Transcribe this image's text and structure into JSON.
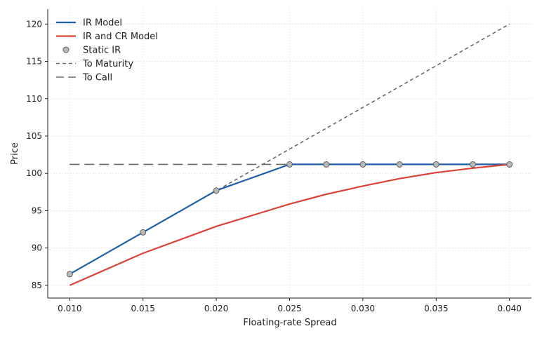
{
  "chart_data": {
    "type": "line",
    "title": "",
    "xlabel": "Floating-rate Spread",
    "ylabel": "Price",
    "xlim": [
      0.0085,
      0.0415
    ],
    "ylim": [
      83.3,
      122.0
    ],
    "x_ticks": [
      0.01,
      0.015,
      0.02,
      0.025,
      0.03,
      0.035,
      0.04
    ],
    "x_tick_labels": [
      "0.010",
      "0.015",
      "0.020",
      "0.025",
      "0.030",
      "0.035",
      "0.040"
    ],
    "y_ticks": [
      85,
      90,
      95,
      100,
      105,
      110,
      115,
      120
    ],
    "y_tick_labels": [
      "85",
      "90",
      "95",
      "100",
      "105",
      "110",
      "115",
      "120"
    ],
    "grid": true,
    "legend_position": "top-left",
    "series": [
      {
        "name": "IR Model",
        "kind": "line",
        "color": "#1f5fa8",
        "x": [
          0.01,
          0.015,
          0.02,
          0.025,
          0.0275,
          0.03,
          0.0325,
          0.035,
          0.0375,
          0.04
        ],
        "y": [
          86.5,
          92.1,
          97.7,
          101.2,
          101.2,
          101.2,
          101.2,
          101.2,
          101.2,
          101.2
        ]
      },
      {
        "name": "IR and CR Model",
        "kind": "line",
        "color": "#d9433a",
        "x": [
          0.01,
          0.015,
          0.02,
          0.025,
          0.0275,
          0.03,
          0.0325,
          0.035,
          0.0375,
          0.04
        ],
        "y": [
          85.0,
          89.3,
          92.9,
          95.9,
          97.2,
          98.3,
          99.3,
          100.1,
          100.7,
          101.2
        ]
      },
      {
        "name": "Static IR",
        "kind": "markers",
        "color": "#b8b8b8",
        "x": [
          0.01,
          0.015,
          0.02,
          0.025,
          0.0275,
          0.03,
          0.0325,
          0.035,
          0.0375,
          0.04
        ],
        "y": [
          86.5,
          92.1,
          97.7,
          101.2,
          101.2,
          101.2,
          101.2,
          101.2,
          101.2,
          101.2
        ]
      },
      {
        "name": "To Maturity",
        "kind": "dashed",
        "color": "#6a6a6a",
        "x": [
          0.01,
          0.04
        ],
        "y": [
          86.5,
          120.0
        ]
      },
      {
        "name": "To Call",
        "kind": "longdash",
        "color": "#6a6a6a",
        "x": [
          0.01,
          0.04
        ],
        "y": [
          101.2,
          101.2
        ]
      }
    ]
  }
}
